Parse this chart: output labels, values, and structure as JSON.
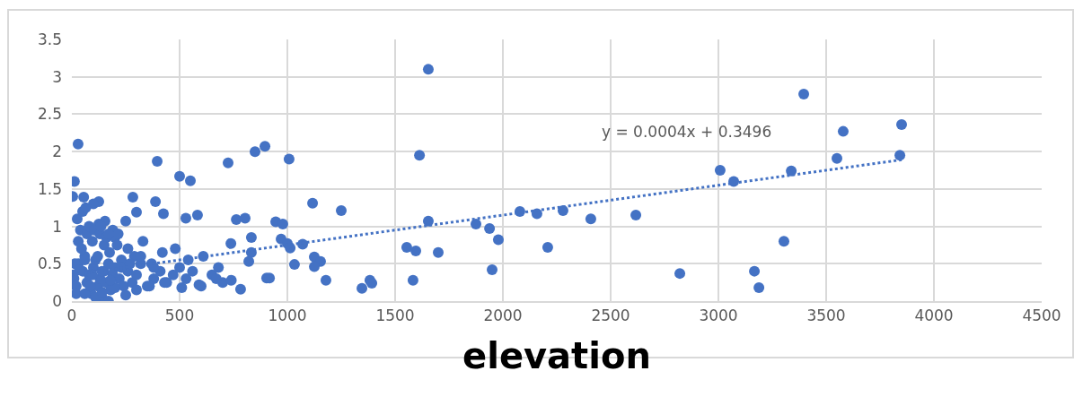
{
  "chart_data": {
    "type": "scatter",
    "xlabel": "elevation",
    "xlim": [
      0,
      4500
    ],
    "xticks": [
      0,
      500,
      1000,
      1500,
      2000,
      2500,
      3000,
      3500,
      4000,
      4500
    ],
    "ylim": [
      0,
      3.5
    ],
    "yticks": [
      0,
      0.5,
      1,
      1.5,
      2,
      2.5,
      3,
      3.5
    ],
    "grid": true,
    "marker": "circle",
    "annotations": [
      "y = 0.0004x + 0.3496"
    ],
    "series": [
      {
        "color": "#4472c4",
        "x": [
          29,
          12,
          4,
          55,
          125,
          396,
          500,
          550,
          283,
          388,
          425,
          300,
          250,
          583,
          529,
          154,
          125,
          763,
          804,
          946,
          979,
          1117,
          738,
          833,
          833,
          821,
          904,
          783,
          971,
          1013,
          1071,
          1033,
          1125,
          1008,
          1613,
          1250,
          1000,
          1154,
          1125,
          1179,
          1346,
          1383,
          1392,
          917,
          1654,
          1554,
          1596,
          1700,
          1583,
          1875,
          1938,
          1979,
          1950,
          2079,
          2158,
          2279,
          2408,
          2208,
          2617,
          3396,
          3579,
          3850,
          3550,
          3842,
          3008,
          3071,
          3338,
          2821,
          3304,
          3167,
          3188,
          725,
          896,
          850,
          1654,
          10,
          20,
          30,
          40,
          50,
          60,
          70,
          80,
          90,
          100,
          110,
          120,
          130,
          140,
          150,
          160,
          170,
          180,
          190,
          200,
          220,
          240,
          260,
          280,
          300,
          320,
          350,
          380,
          410,
          440,
          470,
          500,
          530,
          560,
          600,
          650,
          700,
          20,
          45,
          70,
          95,
          120,
          150,
          175,
          200,
          230,
          260,
          290,
          330,
          370,
          420,
          480,
          540,
          610,
          680,
          15,
          35,
          60,
          85,
          110,
          140,
          170,
          200,
          250,
          300,
          360,
          430,
          510,
          590,
          670,
          740,
          5,
          25,
          50,
          80,
          105,
          130,
          160,
          190,
          215,
          30,
          65,
          100,
          135,
          170,
          210,
          60,
          95,
          140,
          180,
          230,
          270,
          320,
          380
        ],
        "values": [
          2.1,
          1.6,
          1.4,
          1.39,
          1.33,
          1.87,
          1.67,
          1.61,
          1.39,
          1.33,
          1.17,
          1.19,
          1.07,
          1.15,
          1.11,
          1.07,
          1.03,
          1.09,
          1.11,
          1.06,
          1.03,
          1.31,
          0.77,
          0.85,
          0.65,
          0.53,
          0.31,
          0.16,
          0.83,
          0.71,
          0.76,
          0.49,
          0.59,
          1.9,
          1.95,
          1.21,
          0.77,
          0.53,
          0.46,
          0.28,
          0.17,
          0.28,
          0.24,
          0.31,
          3.1,
          0.72,
          0.67,
          0.65,
          0.28,
          1.03,
          0.97,
          0.82,
          0.42,
          1.2,
          1.17,
          1.21,
          1.1,
          0.72,
          1.15,
          2.77,
          2.27,
          2.36,
          1.91,
          1.95,
          1.75,
          1.6,
          1.74,
          0.37,
          0.8,
          0.4,
          0.18,
          1.85,
          2.07,
          2.0,
          1.07,
          0.3,
          0.2,
          0.5,
          0.95,
          0.4,
          0.6,
          0.25,
          0.35,
          0.1,
          0.45,
          0.55,
          0.2,
          0.3,
          0.05,
          0.4,
          0.25,
          0.5,
          0.15,
          0.35,
          0.45,
          0.3,
          0.2,
          0.4,
          0.25,
          0.35,
          0.5,
          0.2,
          0.3,
          0.4,
          0.25,
          0.35,
          0.45,
          0.3,
          0.4,
          0.2,
          0.35,
          0.25,
          0.1,
          0.7,
          0.9,
          0.8,
          0.6,
          0.75,
          0.65,
          0.85,
          0.55,
          0.7,
          0.6,
          0.8,
          0.5,
          0.65,
          0.7,
          0.55,
          0.6,
          0.45,
          0.5,
          0.42,
          0.1,
          0.2,
          0.05,
          0.12,
          0.0,
          0.18,
          0.08,
          0.15,
          0.2,
          0.25,
          0.18,
          0.22,
          0.3,
          0.28,
          0.35,
          1.1,
          1.2,
          1.0,
          0.95,
          0.9,
          0.85,
          0.95,
          0.9,
          0.8,
          1.25,
          1.3,
          1.0,
          0.9,
          0.75,
          0.55,
          0.35,
          0.4,
          0.28,
          0.45,
          0.5,
          0.6,
          0.45
        ]
      },
      {
        "type": "line",
        "color": "#4472c4",
        "line_style": "dotted",
        "marker": "none",
        "x": [
          0,
          3850
        ],
        "values": [
          0.35,
          1.89
        ]
      }
    ]
  }
}
